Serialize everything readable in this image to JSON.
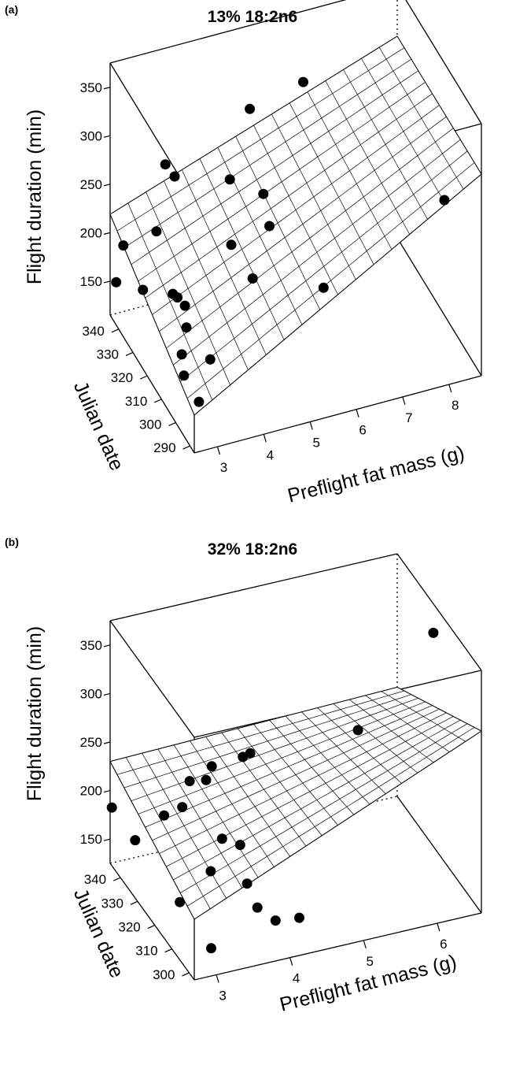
{
  "chart_data": [
    {
      "type": "scatter",
      "panel_label": "(a)",
      "title": "13% 18:2n6",
      "xlabel": "Preflight fat mass (g)",
      "ylabel": "Julian date",
      "zlabel": "Flight duration (min)",
      "xticks": [
        "3",
        "4",
        "5",
        "6",
        "7",
        "8"
      ],
      "yticks": [
        "290",
        "300",
        "310",
        "320",
        "330",
        "340"
      ],
      "zticks": [
        "150",
        "200",
        "250",
        "300",
        "350"
      ],
      "xlim": [
        2.5,
        8.7
      ],
      "ylim": [
        287,
        346
      ],
      "zlim": [
        115,
        375
      ],
      "grid": false,
      "surface": {
        "type": "fitted-regression",
        "z_min": 125,
        "z_max": 360
      },
      "points": [
        {
          "x": 2.6,
          "y": 345,
          "z": 150
        },
        {
          "x": 2.6,
          "y": 340,
          "z": 200
        },
        {
          "x": 2.9,
          "y": 336,
          "z": 160
        },
        {
          "x": 3.1,
          "y": 333,
          "z": 225
        },
        {
          "x": 3.2,
          "y": 330,
          "z": 300
        },
        {
          "x": 3.4,
          "y": 330,
          "z": 285
        },
        {
          "x": 3.3,
          "y": 328,
          "z": 170
        },
        {
          "x": 3.4,
          "y": 328,
          "z": 165
        },
        {
          "x": 3.5,
          "y": 326,
          "z": 160
        },
        {
          "x": 3.5,
          "y": 325,
          "z": 140
        },
        {
          "x": 3.8,
          "y": 318,
          "z": 120
        },
        {
          "x": 4.5,
          "y": 327,
          "z": 275
        },
        {
          "x": 4.5,
          "y": 326,
          "z": 210
        },
        {
          "x": 4.9,
          "y": 326,
          "z": 345
        },
        {
          "x": 5.1,
          "y": 323,
          "z": 262
        },
        {
          "x": 5.2,
          "y": 322,
          "z": 230
        },
        {
          "x": 4.9,
          "y": 324,
          "z": 175
        },
        {
          "x": 5.9,
          "y": 321,
          "z": 372
        },
        {
          "x": 3.0,
          "y": 312,
          "z": 150
        },
        {
          "x": 2.8,
          "y": 304,
          "z": 150
        },
        {
          "x": 3.0,
          "y": 300,
          "z": 130
        },
        {
          "x": 6.0,
          "y": 310,
          "z": 185
        },
        {
          "x": 8.3,
          "y": 300,
          "z": 270
        }
      ]
    },
    {
      "type": "scatter",
      "panel_label": "(b)",
      "title": "32% 18:2n6",
      "xlabel": "Preflight fat mass (g)",
      "ylabel": "Julian date",
      "zlabel": "Flight duration (min)",
      "xticks": [
        "3",
        "4",
        "5",
        "6"
      ],
      "yticks": [
        "300",
        "310",
        "320",
        "330",
        "340"
      ],
      "zticks": [
        "150",
        "200",
        "250",
        "300",
        "350"
      ],
      "xlim": [
        2.7,
        6.6
      ],
      "ylim": [
        297,
        346
      ],
      "zlim": [
        125,
        375
      ],
      "grid": false,
      "surface": {
        "type": "fitted-regression",
        "z_min": 160,
        "z_max": 320
      },
      "points": [
        {
          "x": 2.7,
          "y": 345,
          "z": 185
        },
        {
          "x": 2.9,
          "y": 340,
          "z": 160
        },
        {
          "x": 3.2,
          "y": 336,
          "z": 190
        },
        {
          "x": 3.4,
          "y": 334,
          "z": 200
        },
        {
          "x": 3.5,
          "y": 334,
          "z": 225
        },
        {
          "x": 3.7,
          "y": 333,
          "z": 225
        },
        {
          "x": 3.8,
          "y": 334,
          "z": 235
        },
        {
          "x": 4.2,
          "y": 333,
          "z": 240
        },
        {
          "x": 4.3,
          "y": 333,
          "z": 242
        },
        {
          "x": 3.8,
          "y": 328,
          "z": 175
        },
        {
          "x": 4.0,
          "y": 326,
          "z": 170
        },
        {
          "x": 3.6,
          "y": 326,
          "z": 150
        },
        {
          "x": 4.0,
          "y": 322,
          "z": 140
        },
        {
          "x": 4.0,
          "y": 316,
          "z": 130
        },
        {
          "x": 4.2,
          "y": 314,
          "z": 118
        },
        {
          "x": 4.5,
          "y": 313,
          "z": 118
        },
        {
          "x": 5.6,
          "y": 326,
          "z": 260
        },
        {
          "x": 6.6,
          "y": 325,
          "z": 345
        },
        {
          "x": 2.9,
          "y": 314,
          "z": 160
        },
        {
          "x": 3.0,
          "y": 300,
          "z": 145
        }
      ]
    }
  ]
}
